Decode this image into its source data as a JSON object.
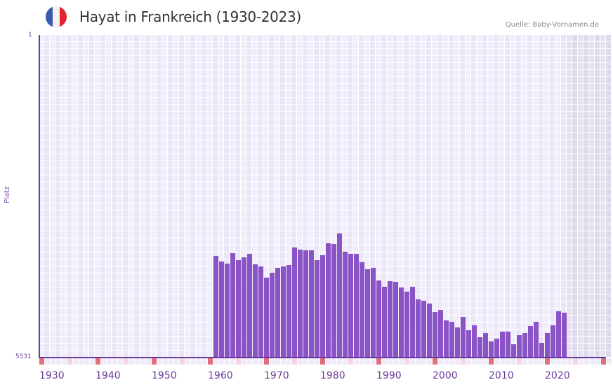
{
  "header": {
    "title": "Hayat in Frankreich (1930-2023)",
    "source": "Quelle: Baby-Vornamen.de",
    "flag_colors": [
      "#3a5bab",
      "#f2f2f2",
      "#e4222e"
    ]
  },
  "axes": {
    "y_label": "Platz",
    "y_top_label": "1",
    "y_bottom_label": "5531",
    "x_labels": [
      "1930",
      "1940",
      "1950",
      "1960",
      "1970",
      "1980",
      "1990",
      "2000",
      "2010",
      "2020"
    ]
  },
  "colors": {
    "bar": "#8b54c6",
    "axis": "#6a3a9a",
    "grid_a": "#f1eefb",
    "grid_b": "#ebe6f7",
    "future_a": "#e6e2ef",
    "future_b": "#dfdaeb",
    "decade_tick": "#e0707b",
    "half_decade_tick": "#f5d6de",
    "minor_tick": "#efebf8"
  },
  "chart_data": {
    "type": "bar",
    "title": "Hayat in Frankreich (1930-2023)",
    "xlabel": "",
    "ylabel": "Platz",
    "y_inverted": true,
    "ylim": [
      5531,
      1
    ],
    "x_range": [
      1930,
      2030
    ],
    "future_shaded_from": 2024,
    "grid": true,
    "legend": null,
    "categories": [
      1961,
      1962,
      1963,
      1964,
      1965,
      1966,
      1967,
      1968,
      1969,
      1970,
      1971,
      1972,
      1973,
      1974,
      1975,
      1976,
      1977,
      1978,
      1979,
      1980,
      1981,
      1982,
      1983,
      1984,
      1985,
      1986,
      1987,
      1988,
      1989,
      1990,
      1991,
      1992,
      1993,
      1994,
      1995,
      1996,
      1997,
      1998,
      1999,
      2000,
      2001,
      2002,
      2003,
      2004,
      2005,
      2006,
      2007,
      2008,
      2009,
      2010,
      2011,
      2012,
      2013,
      2014,
      2015,
      2016,
      2017,
      2018,
      2019,
      2020,
      2021,
      2022,
      2023
    ],
    "values": [
      3788,
      3884,
      3920,
      3740,
      3860,
      3812,
      3752,
      3932,
      3968,
      4160,
      4076,
      3992,
      3968,
      3944,
      3643,
      3679,
      3692,
      3692,
      3860,
      3776,
      3571,
      3583,
      3403,
      3715,
      3752,
      3752,
      3896,
      4016,
      3992,
      4209,
      4317,
      4221,
      4233,
      4329,
      4401,
      4317,
      4533,
      4557,
      4605,
      4750,
      4714,
      4894,
      4918,
      5014,
      4834,
      5062,
      4978,
      5182,
      5110,
      5254,
      5206,
      5086,
      5086,
      5302,
      5146,
      5110,
      4990,
      4918,
      5278,
      5110,
      4978,
      4738,
      4762
    ]
  }
}
